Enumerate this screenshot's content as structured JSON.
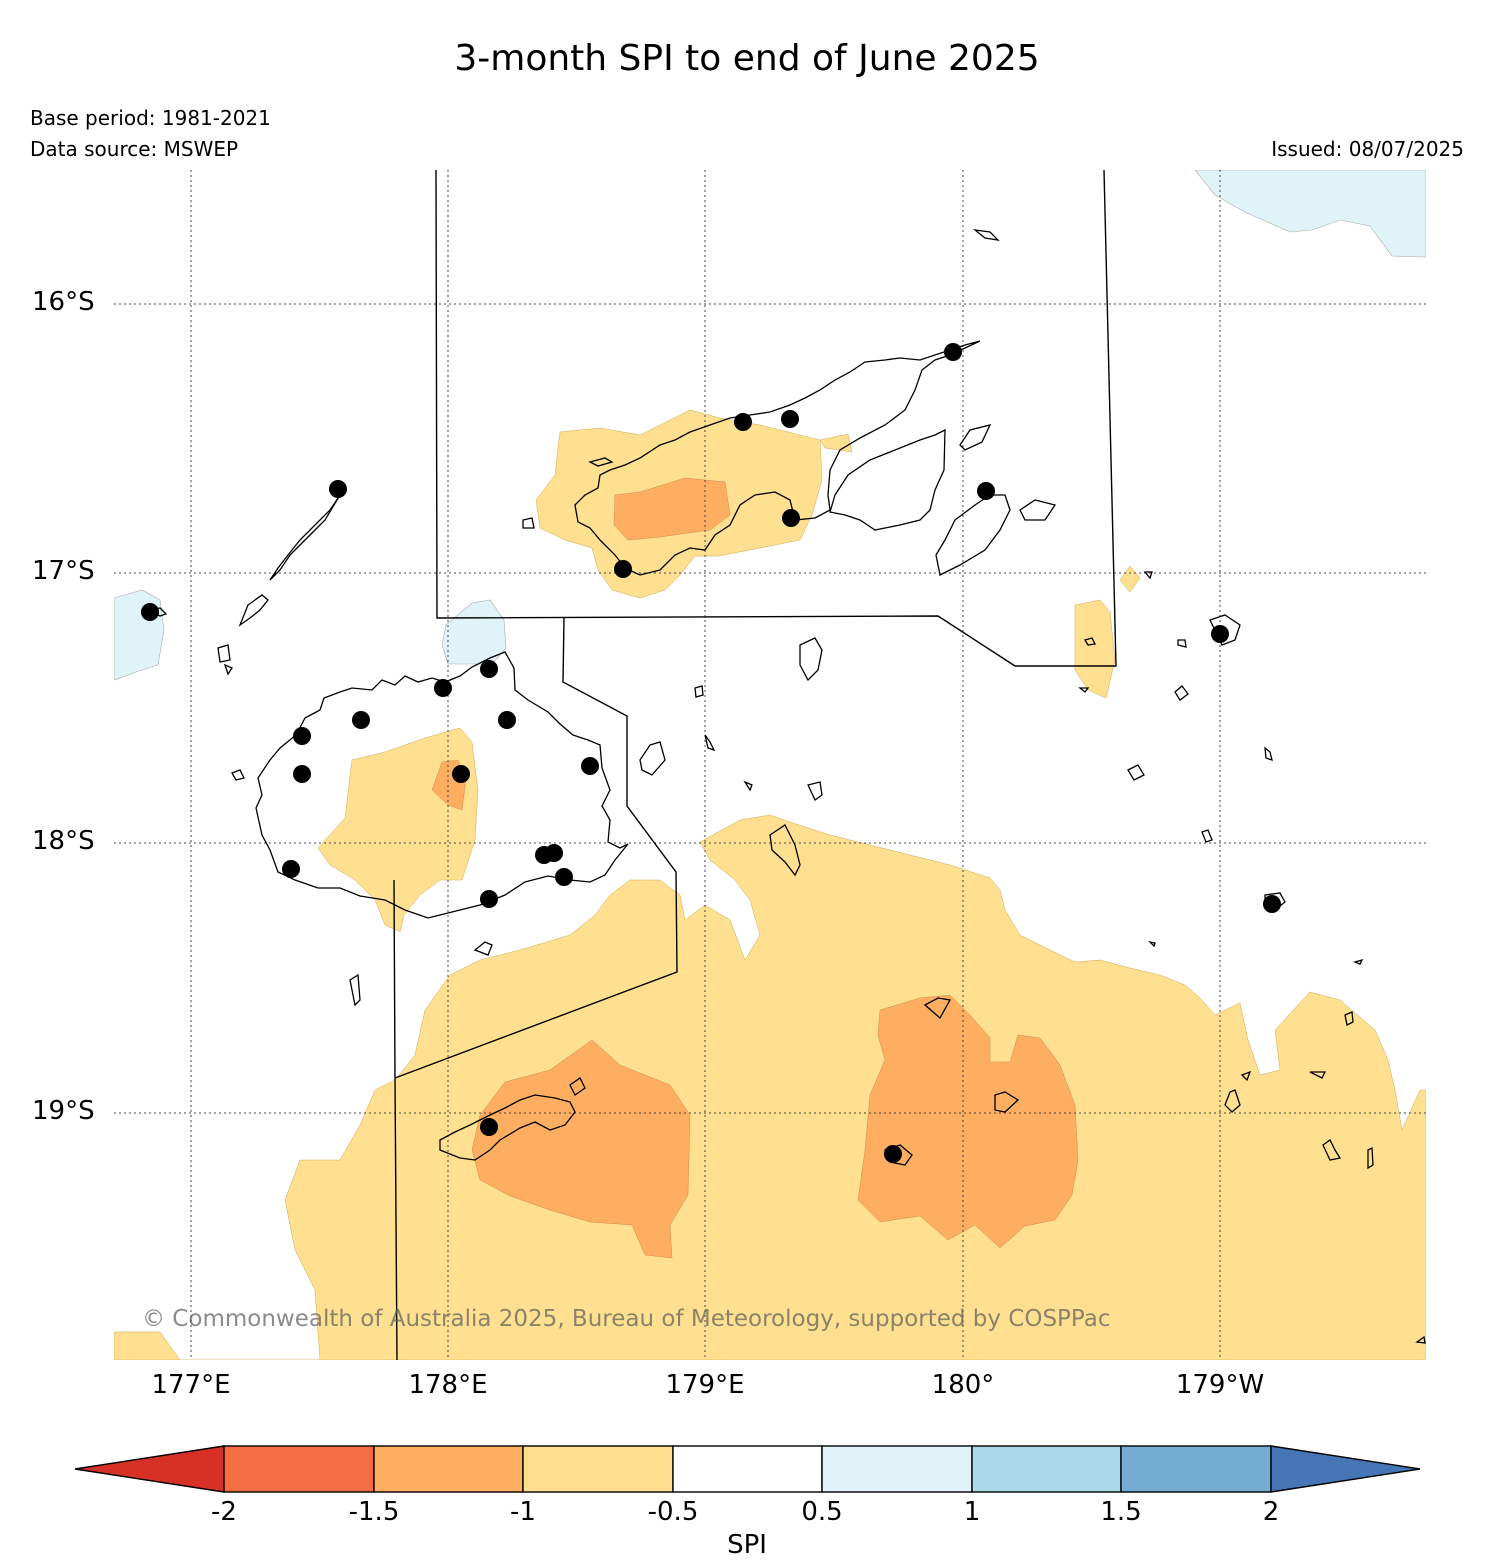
{
  "title": "3-month SPI to end of June 2025",
  "base_period": "Base period: 1981-2021",
  "data_source": "Data source: MSWEP",
  "issued": "Issued: 08/07/2025",
  "copyright": "© Commonwealth of Australia 2025, Bureau of Meteorology, supported by COSPPac",
  "lat_labels": [
    "16°S",
    "17°S",
    "18°S",
    "19°S"
  ],
  "lon_labels": [
    "177°E",
    "178°E",
    "179°E",
    "180°",
    "179°W"
  ],
  "colorbar": {
    "label": "SPI",
    "ticks": [
      "-2",
      "-1.5",
      "-1",
      "-0.5",
      "0.5",
      "1",
      "1.5",
      "2"
    ],
    "colors": [
      "#d73027",
      "#f46d43",
      "#fdae61",
      "#fee090",
      "#ffffff",
      "#e0f3f8",
      "#abd9e9",
      "#74add1",
      "#4575b4"
    ]
  },
  "stations": 26
}
